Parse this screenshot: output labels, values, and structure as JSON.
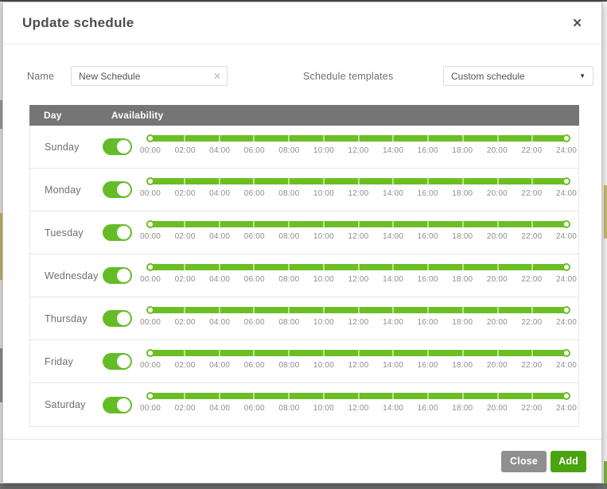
{
  "modal": {
    "title": "Update schedule",
    "close_icon": "✕"
  },
  "form": {
    "name": {
      "label": "Name",
      "value": "New Schedule",
      "clear_icon": "✕"
    },
    "templates": {
      "label": "Schedule templates",
      "value": "Custom schedule",
      "caret_icon": "▼"
    }
  },
  "table": {
    "columns": {
      "day": "Day",
      "availability": "Availability"
    },
    "tick_labels": [
      "00:00",
      "02:00",
      "04:00",
      "06:00",
      "08:00",
      "10:00",
      "12:00",
      "14:00",
      "16:00",
      "18:00",
      "20:00",
      "22:00",
      "24:00"
    ],
    "rows": [
      {
        "day": "Sunday",
        "enabled": true,
        "range": [
          "00:00",
          "24:00"
        ]
      },
      {
        "day": "Monday",
        "enabled": true,
        "range": [
          "00:00",
          "24:00"
        ]
      },
      {
        "day": "Tuesday",
        "enabled": true,
        "range": [
          "00:00",
          "24:00"
        ]
      },
      {
        "day": "Wednesday",
        "enabled": true,
        "range": [
          "00:00",
          "24:00"
        ]
      },
      {
        "day": "Thursday",
        "enabled": true,
        "range": [
          "00:00",
          "24:00"
        ]
      },
      {
        "day": "Friday",
        "enabled": true,
        "range": [
          "00:00",
          "24:00"
        ]
      },
      {
        "day": "Saturday",
        "enabled": true,
        "range": [
          "00:00",
          "24:00"
        ]
      }
    ]
  },
  "footer": {
    "close_label": "Close",
    "add_label": "Add"
  },
  "colors": {
    "accent_green": "#6CBE25",
    "toggle_green": "#64BC26",
    "add_green": "#4BA30F",
    "close_gray": "#8F8F8F",
    "table_header_gray": "#757575"
  }
}
